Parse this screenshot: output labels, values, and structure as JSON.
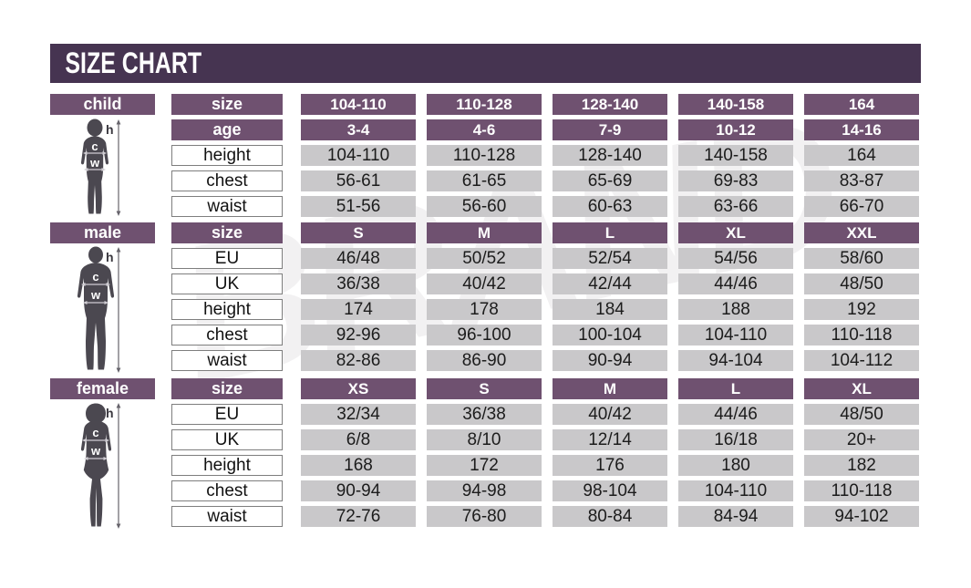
{
  "title": "SIZE CHART",
  "watermark": "BRAND",
  "colors": {
    "banner_purple": "#463451",
    "header_purple": "#6f5170",
    "cell_gray": "#c9c8ca",
    "text_dark": "#1c1c1c",
    "silhouette_gray": "#4b4850"
  },
  "figure_annotations": {
    "height_label": "h",
    "chest_label": "c",
    "waist_label": "w"
  },
  "chart_data": [
    {
      "type": "table",
      "section": "child",
      "rows": [
        {
          "label": "size",
          "header": true,
          "values": [
            "104-110",
            "110-128",
            "128-140",
            "140-158",
            "164"
          ]
        },
        {
          "label": "age",
          "header": true,
          "values": [
            "3-4",
            "4-6",
            "7-9",
            "10-12",
            "14-16"
          ]
        },
        {
          "label": "height",
          "header": false,
          "values": [
            "104-110",
            "110-128",
            "128-140",
            "140-158",
            "164"
          ]
        },
        {
          "label": "chest",
          "header": false,
          "values": [
            "56-61",
            "61-65",
            "65-69",
            "69-83",
            "83-87"
          ]
        },
        {
          "label": "waist",
          "header": false,
          "values": [
            "51-56",
            "56-60",
            "60-63",
            "63-66",
            "66-70"
          ]
        }
      ]
    },
    {
      "type": "table",
      "section": "male",
      "rows": [
        {
          "label": "size",
          "header": true,
          "values": [
            "S",
            "M",
            "L",
            "XL",
            "XXL"
          ]
        },
        {
          "label": "EU",
          "header": false,
          "values": [
            "46/48",
            "50/52",
            "52/54",
            "54/56",
            "58/60"
          ]
        },
        {
          "label": "UK",
          "header": false,
          "values": [
            "36/38",
            "40/42",
            "42/44",
            "44/46",
            "48/50"
          ]
        },
        {
          "label": "height",
          "header": false,
          "values": [
            "174",
            "178",
            "184",
            "188",
            "192"
          ]
        },
        {
          "label": "chest",
          "header": false,
          "values": [
            "92-96",
            "96-100",
            "100-104",
            "104-110",
            "110-118"
          ]
        },
        {
          "label": "waist",
          "header": false,
          "values": [
            "82-86",
            "86-90",
            "90-94",
            "94-104",
            "104-112"
          ]
        }
      ]
    },
    {
      "type": "table",
      "section": "female",
      "rows": [
        {
          "label": "size",
          "header": true,
          "values": [
            "XS",
            "S",
            "M",
            "L",
            "XL"
          ]
        },
        {
          "label": "EU",
          "header": false,
          "values": [
            "32/34",
            "36/38",
            "40/42",
            "44/46",
            "48/50"
          ]
        },
        {
          "label": "UK",
          "header": false,
          "values": [
            "6/8",
            "8/10",
            "12/14",
            "16/18",
            "20+"
          ]
        },
        {
          "label": "height",
          "header": false,
          "values": [
            "168",
            "172",
            "176",
            "180",
            "182"
          ]
        },
        {
          "label": "chest",
          "header": false,
          "values": [
            "90-94",
            "94-98",
            "98-104",
            "104-110",
            "110-118"
          ]
        },
        {
          "label": "waist",
          "header": false,
          "values": [
            "72-76",
            "76-80",
            "80-84",
            "84-94",
            "94-102"
          ]
        }
      ]
    }
  ]
}
